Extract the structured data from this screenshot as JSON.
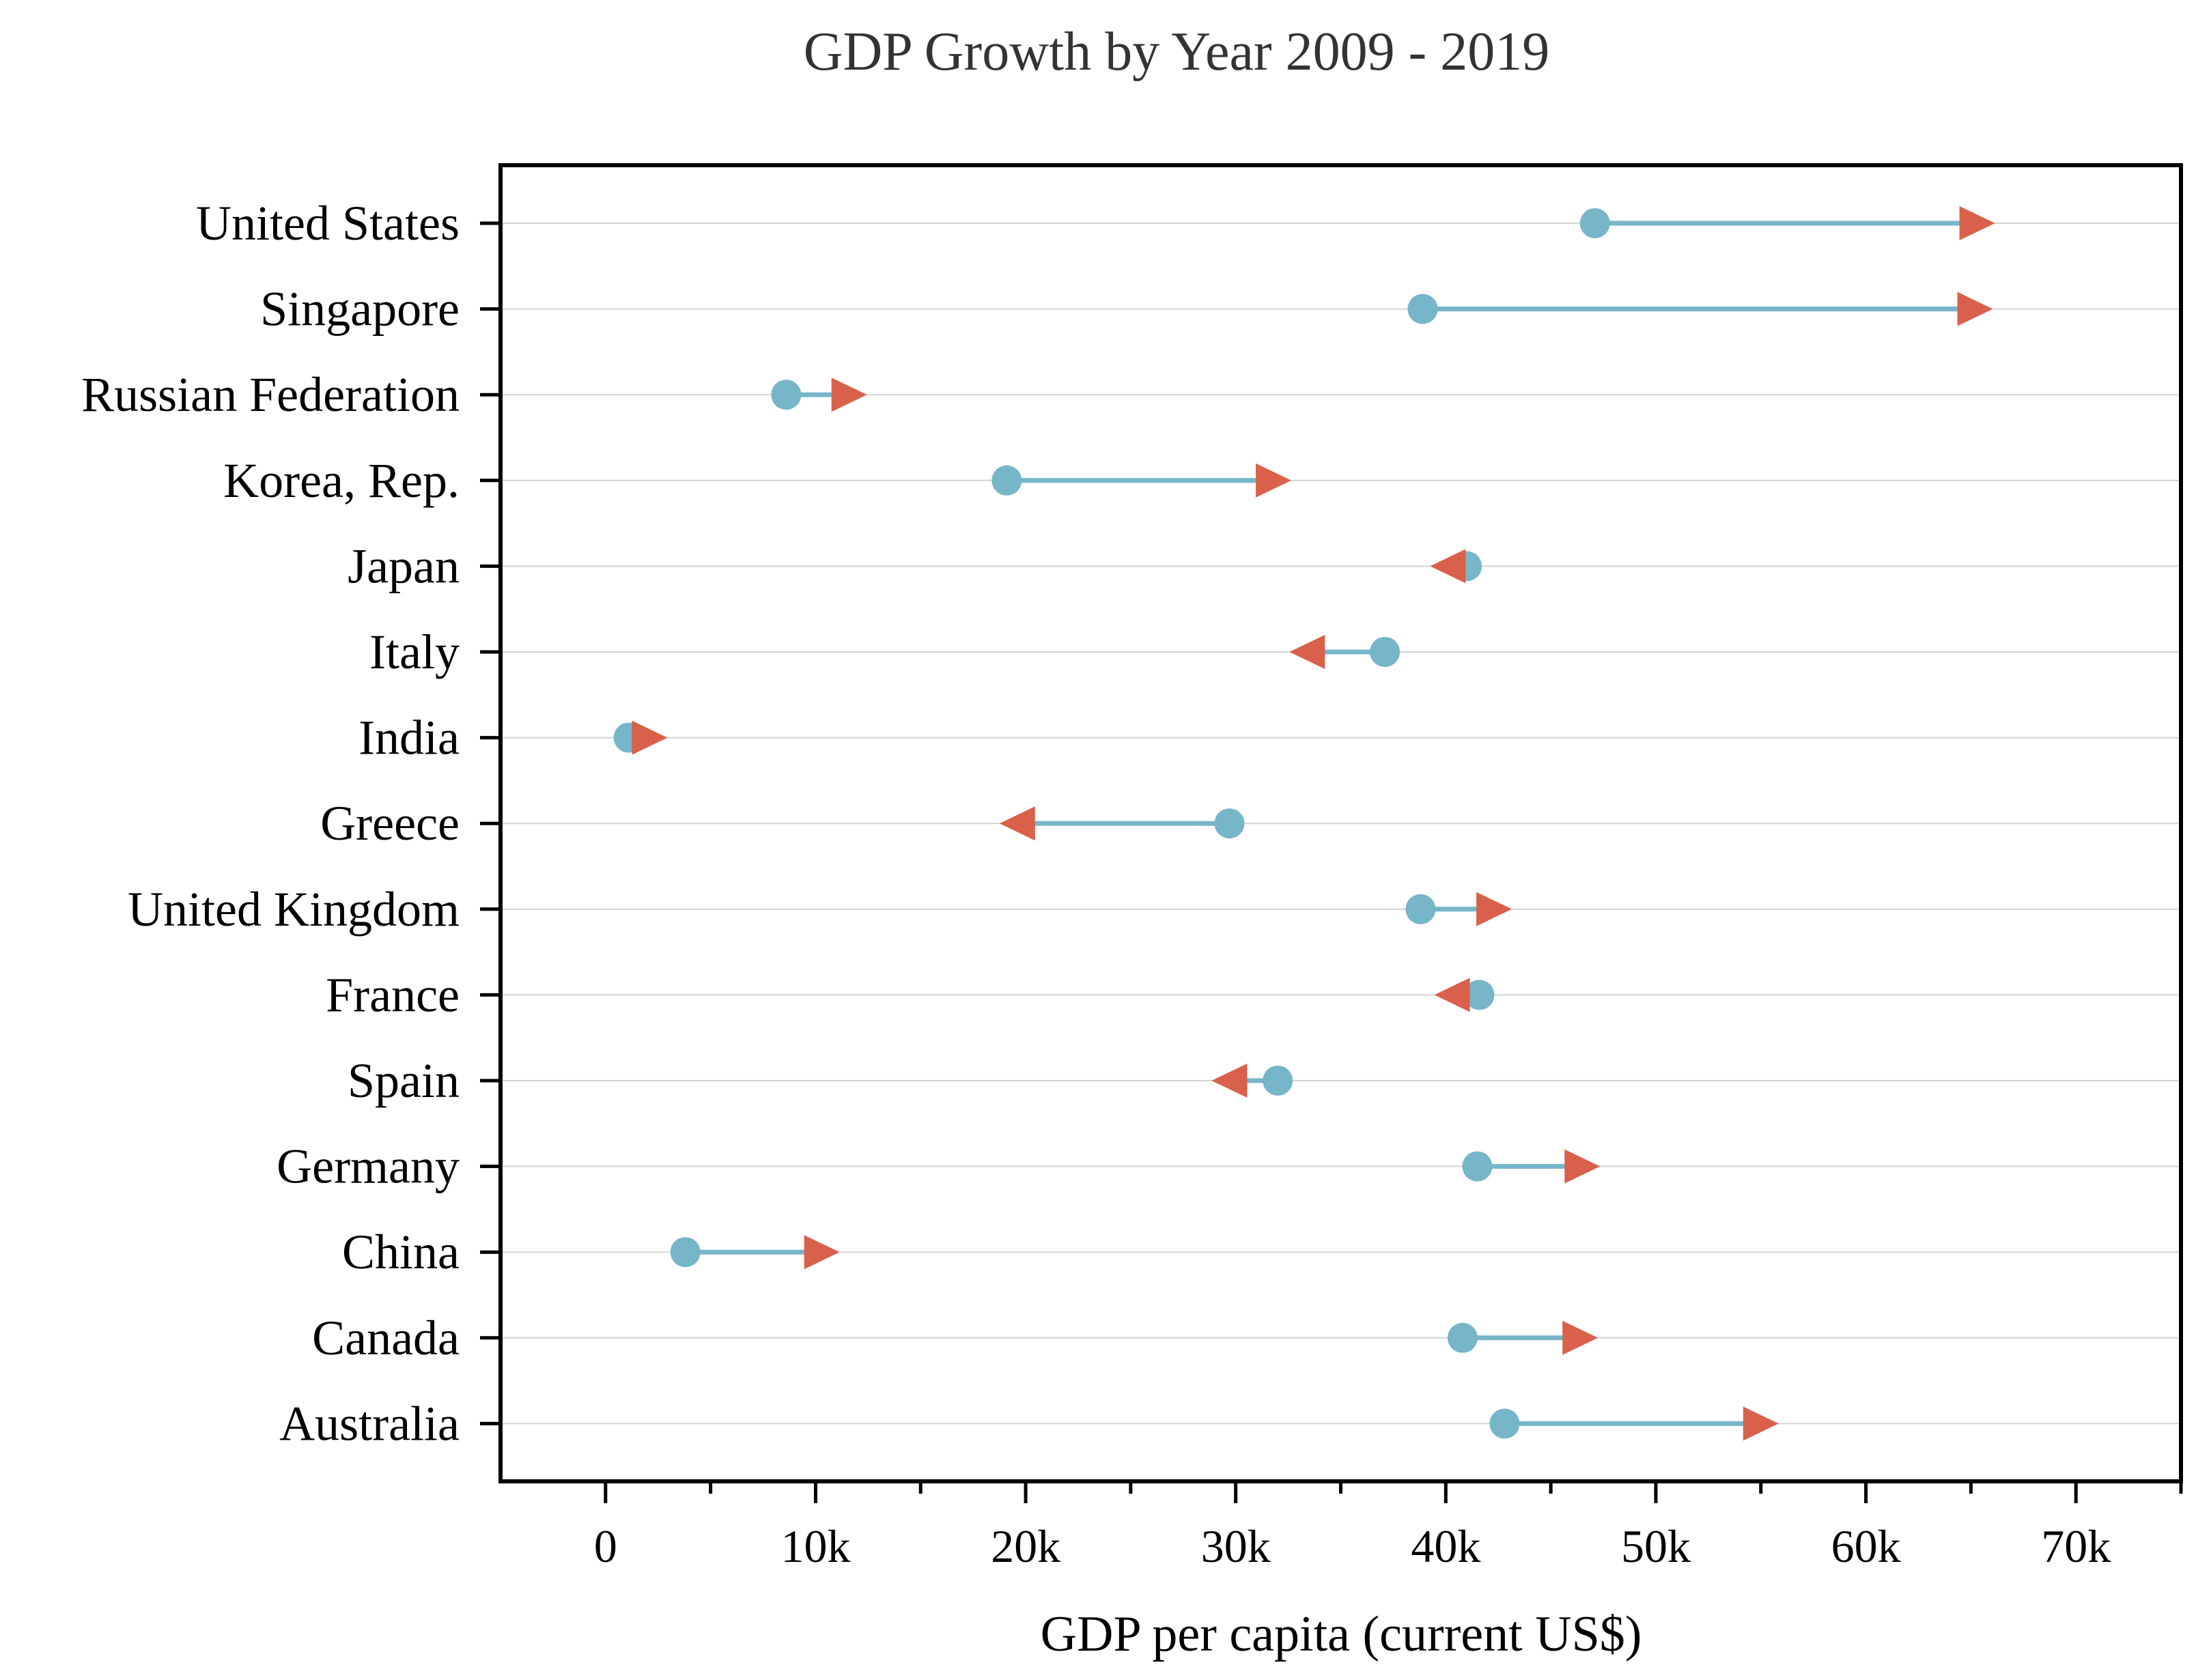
{
  "chart_data": {
    "type": "dumbbell",
    "title": "GDP Growth by Year 2009 - 2019",
    "xlabel": "GDP per capita (current US$)",
    "ylabel": "",
    "xlim": [
      -5000,
      75000
    ],
    "x_ticks": [
      0,
      10000,
      20000,
      30000,
      40000,
      50000,
      60000,
      70000
    ],
    "x_tick_labels": [
      "0",
      "10k",
      "20k",
      "30k",
      "40k",
      "50k",
      "60k",
      "70k"
    ],
    "grid": "horizontal",
    "categories": [
      "United States",
      "Singapore",
      "Russian Federation",
      "Korea, Rep.",
      "Japan",
      "Italy",
      "India",
      "Greece",
      "United Kingdom",
      "France",
      "Spain",
      "Germany",
      "China",
      "Canada",
      "Australia"
    ],
    "series": [
      {
        "values": [
          47100,
          38900,
          8600,
          19100,
          41000,
          37100,
          1100,
          29700,
          38800,
          41600,
          32000,
          41500,
          3800,
          40800,
          42800
        ]
      },
      {
        "values": [
          65300,
          65200,
          11600,
          31800,
          40100,
          33400,
          2100,
          19600,
          42300,
          40300,
          29700,
          46500,
          10300,
          46400,
          55000
        ]
      }
    ],
    "colors": {
      "start_marker": "#77b5c9",
      "end_marker": "#d9604b",
      "connector": "#77b5c9",
      "grid": "#d3d3d3",
      "axis": "#000000"
    }
  }
}
